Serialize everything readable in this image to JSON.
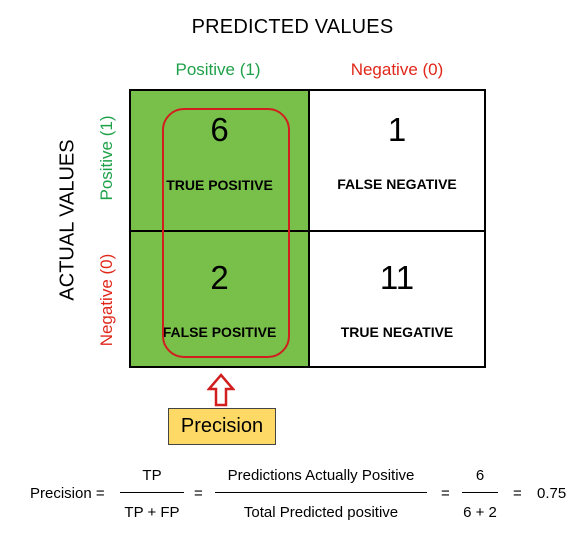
{
  "header": {
    "predicted_title": "PREDICTED VALUES",
    "actual_title": "ACTUAL VALUES",
    "col_positive": "Positive (1)",
    "col_negative": "Negative (0)",
    "row_positive": "Positive (1)",
    "row_negative": "Negative (0)"
  },
  "matrix": {
    "tp": {
      "value": "6",
      "label": "TRUE POSITIVE"
    },
    "fn": {
      "value": "1",
      "label": "FALSE NEGATIVE"
    },
    "fp": {
      "value": "2",
      "label": "FALSE POSITIVE"
    },
    "tn": {
      "value": "11",
      "label": "TRUE NEGATIVE"
    }
  },
  "precision_badge": "Precision",
  "formula": {
    "lhs": "Precision =",
    "frac1_num": "TP",
    "frac1_den": "TP + FP",
    "eq1": "=",
    "frac2_num": "Predictions Actually Positive",
    "frac2_den": "Total Predicted positive",
    "eq2": "=",
    "frac3_num": "6",
    "frac3_den": "6 + 2",
    "eq3": "=",
    "result": "0.75"
  },
  "colors": {
    "positive_text": "#1fa14a",
    "negative_text": "#e0271a",
    "highlight_fill": "#78c04a",
    "highlight_border": "#d11f1f",
    "badge_fill": "#ffd966"
  },
  "icons": {
    "arrow": "up-arrow-outline-icon"
  }
}
